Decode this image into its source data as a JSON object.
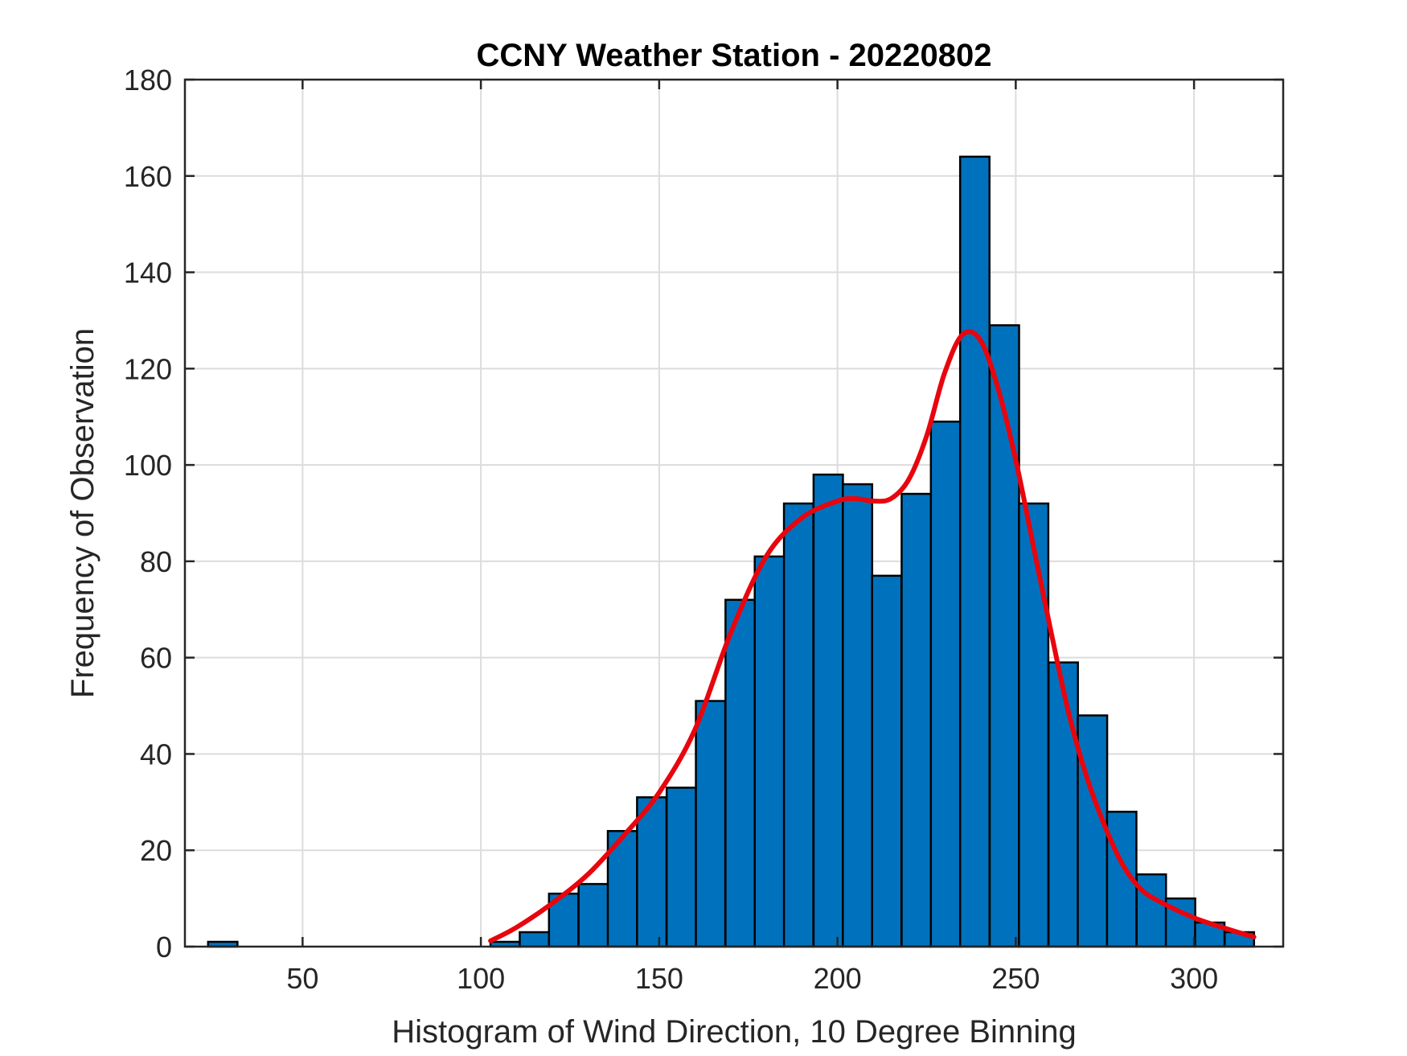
{
  "chart_data": {
    "type": "bar",
    "title": "CCNY Weather Station - 20220802",
    "xlabel": "Histogram of Wind Direction, 10 Degree Binning",
    "ylabel": "Frequency of Observation",
    "xlim": [
      17,
      325
    ],
    "ylim": [
      0,
      180
    ],
    "xticks": [
      50,
      100,
      150,
      200,
      250,
      300
    ],
    "yticks": [
      0,
      20,
      40,
      60,
      80,
      100,
      120,
      140,
      160,
      180
    ],
    "grid": true,
    "bin_width": 8.235,
    "bars": [
      {
        "x0": 23.5,
        "value": 1
      },
      {
        "x0": 102.7,
        "value": 1
      },
      {
        "x0": 110.9,
        "value": 3
      },
      {
        "x0": 119.1,
        "value": 11
      },
      {
        "x0": 127.4,
        "value": 13
      },
      {
        "x0": 135.6,
        "value": 24
      },
      {
        "x0": 143.8,
        "value": 31
      },
      {
        "x0": 152.1,
        "value": 33
      },
      {
        "x0": 160.3,
        "value": 51
      },
      {
        "x0": 168.6,
        "value": 72
      },
      {
        "x0": 176.8,
        "value": 81
      },
      {
        "x0": 185.0,
        "value": 92
      },
      {
        "x0": 193.3,
        "value": 98
      },
      {
        "x0": 201.5,
        "value": 96
      },
      {
        "x0": 209.7,
        "value": 77
      },
      {
        "x0": 218.0,
        "value": 94
      },
      {
        "x0": 226.2,
        "value": 109
      },
      {
        "x0": 234.4,
        "value": 164
      },
      {
        "x0": 242.7,
        "value": 129
      },
      {
        "x0": 250.9,
        "value": 92
      },
      {
        "x0": 259.2,
        "value": 59
      },
      {
        "x0": 267.4,
        "value": 48
      },
      {
        "x0": 275.6,
        "value": 28
      },
      {
        "x0": 283.9,
        "value": 15
      },
      {
        "x0": 292.1,
        "value": 10
      },
      {
        "x0": 300.3,
        "value": 5
      },
      {
        "x0": 308.6,
        "value": 3
      }
    ],
    "fit_curve": {
      "x": [
        102.7,
        110,
        120,
        130,
        140,
        150,
        160,
        170,
        180,
        190,
        200,
        205,
        210,
        215,
        220,
        225,
        230,
        235,
        240,
        245,
        250,
        255,
        260,
        265,
        270,
        275,
        280,
        285,
        290,
        300,
        310,
        316.8
      ],
      "y": [
        1.2,
        4,
        9,
        15,
        23,
        32,
        45,
        65,
        81,
        89,
        92.5,
        93,
        92.5,
        93,
        97,
        106,
        119,
        127,
        126,
        116,
        101,
        83,
        65,
        48,
        35,
        25,
        17,
        12,
        9.5,
        6,
        3.5,
        2
      ]
    },
    "colors": {
      "bar_fill": "#0072BD",
      "bar_edge": "#000000",
      "curve": "#E8050D",
      "grid": "#DCDCDC",
      "axis": "#262626"
    }
  }
}
